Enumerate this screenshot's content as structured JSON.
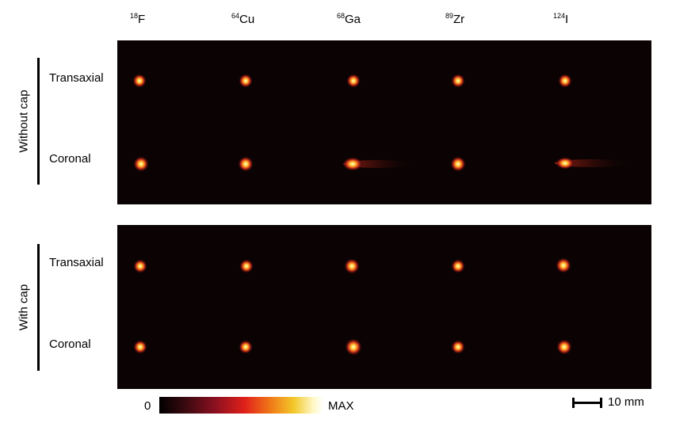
{
  "isotopes": [
    {
      "mass": "18",
      "element": "F"
    },
    {
      "mass": "64",
      "element": "Cu"
    },
    {
      "mass": "68",
      "element": "Ga"
    },
    {
      "mass": "89",
      "element": "Zr"
    },
    {
      "mass": "124",
      "element": "I"
    }
  ],
  "groups": [
    {
      "label": "Without cap",
      "rows": [
        "Transaxial",
        "Coronal"
      ]
    },
    {
      "label": "With cap",
      "rows": [
        "Transaxial",
        "Coronal"
      ]
    }
  ],
  "colorbar": {
    "min_label": "0",
    "max_label": "MAX"
  },
  "scalebar": {
    "label": "10 mm"
  },
  "colors": {
    "panel_background": "#0b0303",
    "hot": "#ffd23a",
    "core": "#fffbe6"
  }
}
